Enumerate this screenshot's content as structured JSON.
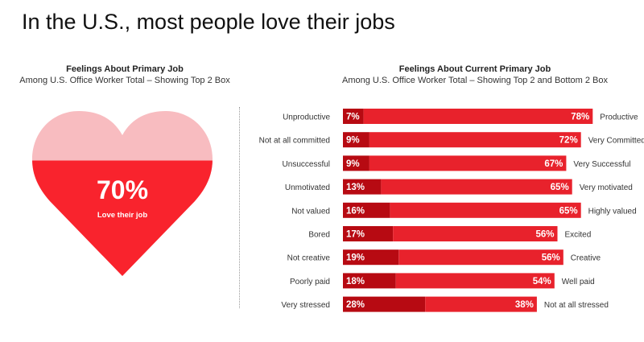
{
  "title": "In the U.S., most people love their jobs",
  "chart_data": [
    {
      "type": "pie",
      "title": "Feelings About Primary Job",
      "subtitle": "Among U.S. Office Worker Total  – Showing Top 2 Box",
      "value": 70,
      "value_label": "70%",
      "label": "Love their job",
      "colors": {
        "filled": "#f9232d",
        "empty": "#f8bcc0"
      }
    },
    {
      "type": "bar",
      "title": "Feelings About Current Primary Job",
      "subtitle": "Among U.S. Office Worker Total  – Showing Top 2 and Bottom 2 Box",
      "rows": [
        {
          "negative": "Unproductive",
          "positive": "Productive",
          "bottom2": 7,
          "top2": 78
        },
        {
          "negative": "Not at all committed",
          "positive": "Very Committed",
          "bottom2": 9,
          "top2": 72
        },
        {
          "negative": "Unsuccessful",
          "positive": "Very Successful",
          "bottom2": 9,
          "top2": 67
        },
        {
          "negative": "Unmotivated",
          "positive": "Very motivated",
          "bottom2": 13,
          "top2": 65
        },
        {
          "negative": "Not valued",
          "positive": "Highly valued",
          "bottom2": 16,
          "top2": 65
        },
        {
          "negative": "Bored",
          "positive": "Excited",
          "bottom2": 17,
          "top2": 56
        },
        {
          "negative": "Not creative",
          "positive": "Creative",
          "bottom2": 19,
          "top2": 56
        },
        {
          "negative": "Poorly paid",
          "positive": "Well paid",
          "bottom2": 18,
          "top2": 54
        },
        {
          "negative": "Very stressed",
          "positive": "Not at all stressed",
          "bottom2": 28,
          "top2": 38
        }
      ],
      "xlim": [
        0,
        100
      ],
      "colors": {
        "bottom2": "#b70a12",
        "top2": "#e8222c"
      }
    }
  ]
}
